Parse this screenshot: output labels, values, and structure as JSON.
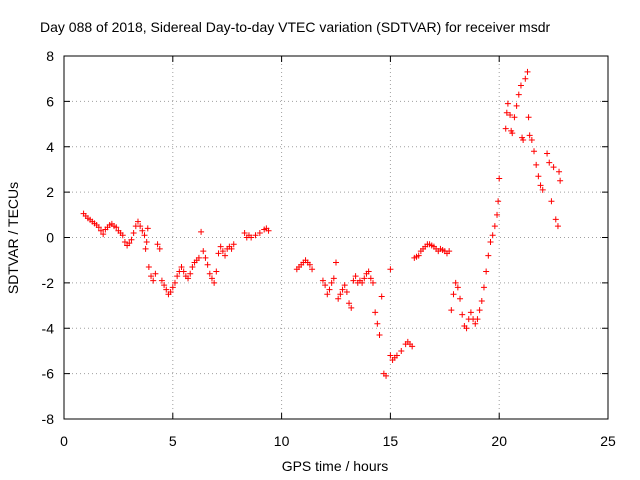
{
  "chart_data": {
    "type": "scatter",
    "title": "Day 088 of 2018, Sidereal Day-to-day VTEC variation (SDTVAR) for receiver msdr",
    "xlabel": "GPS time / hours",
    "ylabel": "SDTVAR / TECUs",
    "xlim": [
      0,
      25
    ],
    "ylim": [
      -8,
      8
    ],
    "x_ticks": [
      0,
      5,
      10,
      15,
      20,
      25
    ],
    "y_ticks": [
      -8,
      -6,
      -4,
      -2,
      0,
      2,
      4,
      6,
      8
    ],
    "x_tick_labels": [
      "0",
      "5",
      "10",
      "15",
      "20",
      "25"
    ],
    "y_tick_labels": [
      "-8",
      "-6",
      "-4",
      "-2",
      "0",
      "2",
      "4",
      "6",
      "8"
    ],
    "grid": true,
    "marker": "plus",
    "color": "#ff0000",
    "series": [
      {
        "name": "SDTVAR",
        "points": [
          [
            0.9,
            1.05
          ],
          [
            1.0,
            0.95
          ],
          [
            1.1,
            0.85
          ],
          [
            1.2,
            0.78
          ],
          [
            1.3,
            0.7
          ],
          [
            1.4,
            0.62
          ],
          [
            1.5,
            0.55
          ],
          [
            1.6,
            0.45
          ],
          [
            1.7,
            0.3
          ],
          [
            1.8,
            0.15
          ],
          [
            1.9,
            0.35
          ],
          [
            2.0,
            0.45
          ],
          [
            2.1,
            0.55
          ],
          [
            2.2,
            0.6
          ],
          [
            2.3,
            0.5
          ],
          [
            2.4,
            0.45
          ],
          [
            2.5,
            0.3
          ],
          [
            2.6,
            0.2
          ],
          [
            2.7,
            0.1
          ],
          [
            2.8,
            -0.2
          ],
          [
            2.9,
            -0.35
          ],
          [
            3.0,
            -0.25
          ],
          [
            3.1,
            -0.1
          ],
          [
            3.2,
            0.2
          ],
          [
            3.3,
            0.5
          ],
          [
            3.4,
            0.7
          ],
          [
            3.5,
            0.5
          ],
          [
            3.6,
            0.3
          ],
          [
            3.7,
            0.1
          ],
          [
            3.75,
            -0.5
          ],
          [
            3.8,
            -0.2
          ],
          [
            3.85,
            0.4
          ],
          [
            3.9,
            -1.3
          ],
          [
            4.0,
            -1.7
          ],
          [
            4.1,
            -1.9
          ],
          [
            4.2,
            -1.6
          ],
          [
            4.3,
            -0.3
          ],
          [
            4.4,
            -0.5
          ],
          [
            4.5,
            -1.9
          ],
          [
            4.6,
            -2.1
          ],
          [
            4.7,
            -2.3
          ],
          [
            4.8,
            -2.5
          ],
          [
            4.9,
            -2.4
          ],
          [
            5.0,
            -2.2
          ],
          [
            5.1,
            -2.0
          ],
          [
            5.2,
            -1.7
          ],
          [
            5.3,
            -1.5
          ],
          [
            5.4,
            -1.3
          ],
          [
            5.5,
            -1.5
          ],
          [
            5.6,
            -1.7
          ],
          [
            5.7,
            -1.8
          ],
          [
            5.8,
            -1.6
          ],
          [
            5.9,
            -1.3
          ],
          [
            6.0,
            -1.1
          ],
          [
            6.1,
            -1.0
          ],
          [
            6.2,
            -0.9
          ],
          [
            6.3,
            0.25
          ],
          [
            6.4,
            -0.6
          ],
          [
            6.5,
            -0.9
          ],
          [
            6.6,
            -1.2
          ],
          [
            6.7,
            -1.6
          ],
          [
            6.8,
            -1.8
          ],
          [
            6.9,
            -2.0
          ],
          [
            7.0,
            -1.5
          ],
          [
            7.1,
            -0.7
          ],
          [
            7.2,
            -0.4
          ],
          [
            7.3,
            -0.6
          ],
          [
            7.4,
            -0.8
          ],
          [
            7.5,
            -0.5
          ],
          [
            7.6,
            -0.4
          ],
          [
            7.7,
            -0.5
          ],
          [
            7.8,
            -0.3
          ],
          [
            8.3,
            0.2
          ],
          [
            8.4,
            0.0
          ],
          [
            8.5,
            0.1
          ],
          [
            8.6,
            0.0
          ],
          [
            8.8,
            0.1
          ],
          [
            9.0,
            0.2
          ],
          [
            9.2,
            0.35
          ],
          [
            9.3,
            0.4
          ],
          [
            9.4,
            0.3
          ],
          [
            10.7,
            -1.4
          ],
          [
            10.8,
            -1.3
          ],
          [
            10.9,
            -1.2
          ],
          [
            11.0,
            -1.1
          ],
          [
            11.1,
            -1.0
          ],
          [
            11.2,
            -1.1
          ],
          [
            11.3,
            -1.2
          ],
          [
            11.4,
            -1.4
          ],
          [
            11.9,
            -1.9
          ],
          [
            12.0,
            -2.1
          ],
          [
            12.1,
            -2.5
          ],
          [
            12.2,
            -2.3
          ],
          [
            12.3,
            -2.0
          ],
          [
            12.4,
            -1.8
          ],
          [
            12.5,
            -1.1
          ],
          [
            12.6,
            -2.7
          ],
          [
            12.7,
            -2.5
          ],
          [
            12.8,
            -2.3
          ],
          [
            12.9,
            -2.1
          ],
          [
            13.0,
            -2.4
          ],
          [
            13.1,
            -2.9
          ],
          [
            13.2,
            -3.1
          ],
          [
            13.3,
            -1.9
          ],
          [
            13.4,
            -1.7
          ],
          [
            13.5,
            -2.0
          ],
          [
            13.6,
            -1.9
          ],
          [
            13.7,
            -2.0
          ],
          [
            13.8,
            -1.8
          ],
          [
            13.9,
            -1.6
          ],
          [
            14.0,
            -1.5
          ],
          [
            14.1,
            -1.8
          ],
          [
            14.2,
            -2.0
          ],
          [
            14.3,
            -3.3
          ],
          [
            14.4,
            -3.8
          ],
          [
            14.5,
            -4.3
          ],
          [
            14.6,
            -2.6
          ],
          [
            14.7,
            -6.0
          ],
          [
            14.8,
            -6.1
          ],
          [
            15.0,
            -1.4
          ],
          [
            15.0,
            -5.2
          ],
          [
            15.1,
            -5.4
          ],
          [
            15.2,
            -5.3
          ],
          [
            15.3,
            -5.2
          ],
          [
            15.5,
            -5.0
          ],
          [
            15.7,
            -4.7
          ],
          [
            15.8,
            -4.6
          ],
          [
            15.9,
            -4.7
          ],
          [
            16.0,
            -4.8
          ],
          [
            16.1,
            -0.9
          ],
          [
            16.2,
            -0.85
          ],
          [
            16.3,
            -0.8
          ],
          [
            16.4,
            -0.6
          ],
          [
            16.5,
            -0.5
          ],
          [
            16.6,
            -0.4
          ],
          [
            16.7,
            -0.3
          ],
          [
            16.8,
            -0.3
          ],
          [
            16.9,
            -0.35
          ],
          [
            17.0,
            -0.4
          ],
          [
            17.1,
            -0.5
          ],
          [
            17.2,
            -0.6
          ],
          [
            17.3,
            -0.5
          ],
          [
            17.4,
            -0.55
          ],
          [
            17.5,
            -0.6
          ],
          [
            17.6,
            -0.7
          ],
          [
            17.7,
            -0.6
          ],
          [
            17.8,
            -3.2
          ],
          [
            17.9,
            -2.5
          ],
          [
            18.0,
            -2.0
          ],
          [
            18.1,
            -2.2
          ],
          [
            18.2,
            -2.7
          ],
          [
            18.3,
            -3.4
          ],
          [
            18.4,
            -3.9
          ],
          [
            18.5,
            -4.0
          ],
          [
            18.6,
            -3.6
          ],
          [
            18.7,
            -3.3
          ],
          [
            18.8,
            -3.6
          ],
          [
            18.9,
            -3.8
          ],
          [
            19.0,
            -3.6
          ],
          [
            19.1,
            -3.2
          ],
          [
            19.2,
            -2.8
          ],
          [
            19.3,
            -2.2
          ],
          [
            19.4,
            -1.5
          ],
          [
            19.5,
            -0.8
          ],
          [
            19.6,
            -0.2
          ],
          [
            19.7,
            0.1
          ],
          [
            19.8,
            0.5
          ],
          [
            19.9,
            1.0
          ],
          [
            19.95,
            1.6
          ],
          [
            20.0,
            2.6
          ],
          [
            20.3,
            4.8
          ],
          [
            20.35,
            5.5
          ],
          [
            20.4,
            5.9
          ],
          [
            20.5,
            5.4
          ],
          [
            20.55,
            4.7
          ],
          [
            20.6,
            4.6
          ],
          [
            20.7,
            5.3
          ],
          [
            20.8,
            5.8
          ],
          [
            20.9,
            6.3
          ],
          [
            21.0,
            6.7
          ],
          [
            21.05,
            4.4
          ],
          [
            21.1,
            4.3
          ],
          [
            21.2,
            7.0
          ],
          [
            21.3,
            7.3
          ],
          [
            21.35,
            5.3
          ],
          [
            21.4,
            4.5
          ],
          [
            21.5,
            4.3
          ],
          [
            21.6,
            3.8
          ],
          [
            21.7,
            3.2
          ],
          [
            21.8,
            2.7
          ],
          [
            21.9,
            2.3
          ],
          [
            22.0,
            2.1
          ],
          [
            22.2,
            3.7
          ],
          [
            22.3,
            3.3
          ],
          [
            22.4,
            1.6
          ],
          [
            22.5,
            3.1
          ],
          [
            22.6,
            0.8
          ],
          [
            22.7,
            0.5
          ],
          [
            22.75,
            2.9
          ],
          [
            22.8,
            2.5
          ]
        ]
      }
    ]
  }
}
